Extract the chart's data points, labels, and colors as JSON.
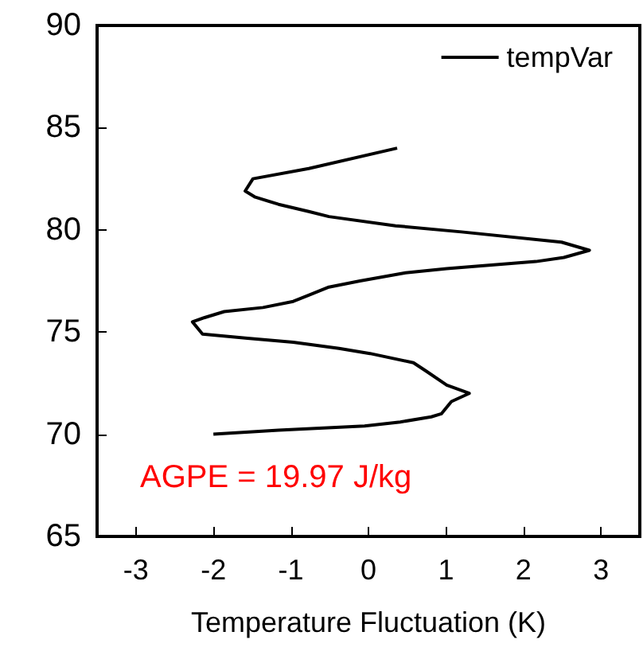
{
  "chart_data": {
    "type": "line",
    "xlabel": "Temperature Fluctuation (K)",
    "annotations": [
      "AGPE = 19.97 J/kg"
    ],
    "xlim": [
      -3.5,
      3.5
    ],
    "xticks": [
      -3,
      -2,
      -1,
      0,
      1,
      2,
      3
    ],
    "ylim": [
      65,
      90
    ],
    "yticks": [
      65,
      70,
      75,
      80,
      85,
      90
    ],
    "grid": false,
    "legend": "top right",
    "marker": "none",
    "line_style": "solid",
    "series": [
      {
        "name": "tempVar",
        "color": "#000000",
        "x": [
          0.37,
          -0.77,
          -1.49,
          -1.59,
          -1.46,
          -1.16,
          -0.77,
          -0.51,
          0.35,
          1.2,
          2.49,
          2.85,
          2.52,
          2.16,
          1.01,
          0.48,
          -0.11,
          -0.51,
          -0.77,
          -0.97,
          -1.36,
          -1.86,
          -2.12,
          -2.27,
          -2.14,
          -1.56,
          -0.97,
          -0.38,
          0.02,
          0.58,
          0.74,
          1.01,
          1.3,
          1.07,
          0.94,
          0.81,
          0.41,
          -0.05,
          -1.16,
          -2.0
        ],
        "values": [
          84,
          83,
          82.5,
          81.9,
          81.6,
          81.25,
          80.9,
          80.65,
          80.2,
          79.9,
          79.4,
          79,
          78.65,
          78.45,
          78.1,
          77.9,
          77.5,
          77.2,
          76.8,
          76.5,
          76.2,
          76,
          75.7,
          75.5,
          74.9,
          74.7,
          74.5,
          74.2,
          73.95,
          73.5,
          73.1,
          72.4,
          72,
          71.6,
          71,
          70.85,
          70.6,
          70.4,
          70.2,
          70
        ]
      }
    ]
  }
}
